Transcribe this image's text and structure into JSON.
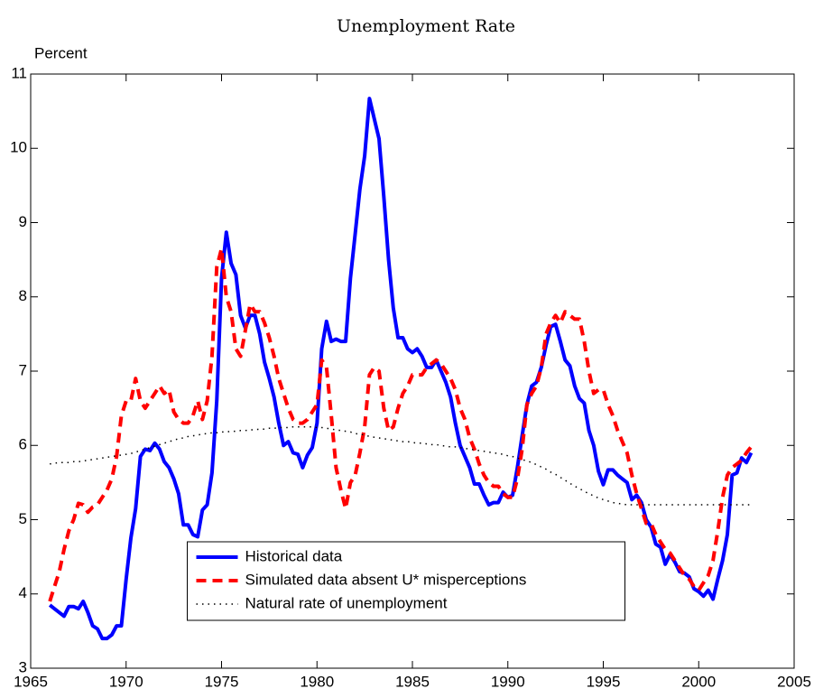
{
  "chart_data": {
    "type": "line",
    "title": "Unemployment Rate",
    "ylabel": "Percent",
    "x": [
      1966,
      1966.25,
      1966.5,
      1966.75,
      1967,
      1967.25,
      1967.5,
      1967.75,
      1968,
      1968.25,
      1968.5,
      1968.75,
      1969,
      1969.25,
      1969.5,
      1969.75,
      1970,
      1970.25,
      1970.5,
      1970.75,
      1971,
      1971.25,
      1971.5,
      1971.75,
      1972,
      1972.25,
      1972.5,
      1972.75,
      1973,
      1973.25,
      1973.5,
      1973.75,
      1974,
      1974.25,
      1974.5,
      1974.75,
      1975,
      1975.25,
      1975.5,
      1975.75,
      1976,
      1976.25,
      1976.5,
      1976.75,
      1977,
      1977.25,
      1977.5,
      1977.75,
      1978,
      1978.25,
      1978.5,
      1978.75,
      1979,
      1979.25,
      1979.5,
      1979.75,
      1980,
      1980.25,
      1980.5,
      1980.75,
      1981,
      1981.25,
      1981.5,
      1981.75,
      1982,
      1982.25,
      1982.5,
      1982.75,
      1983,
      1983.25,
      1983.5,
      1983.75,
      1984,
      1984.25,
      1984.5,
      1984.75,
      1985,
      1985.25,
      1985.5,
      1985.75,
      1986,
      1986.25,
      1986.5,
      1986.75,
      1987,
      1987.25,
      1987.5,
      1987.75,
      1988,
      1988.25,
      1988.5,
      1988.75,
      1989,
      1989.25,
      1989.5,
      1989.75,
      1990,
      1990.25,
      1990.5,
      1990.75,
      1991,
      1991.25,
      1991.5,
      1991.75,
      1992,
      1992.25,
      1992.5,
      1992.75,
      1993,
      1993.25,
      1993.5,
      1993.75,
      1994,
      1994.25,
      1994.5,
      1994.75,
      1995,
      1995.25,
      1995.5,
      1995.75,
      1996,
      1996.25,
      1996.5,
      1996.75,
      1997,
      1997.25,
      1997.5,
      1997.75,
      1998,
      1998.25,
      1998.5,
      1998.75,
      1999,
      1999.25,
      1999.5,
      1999.75,
      2000,
      2000.25,
      2000.5,
      2000.75,
      2001,
      2001.25,
      2001.5,
      2001.75,
      2002,
      2002.25,
      2002.5,
      2002.75
    ],
    "series": [
      {
        "name": "Historical data",
        "color": "#0000ff",
        "style": "solid",
        "values": [
          3.85,
          3.8,
          3.75,
          3.7,
          3.83,
          3.83,
          3.8,
          3.9,
          3.75,
          3.57,
          3.53,
          3.4,
          3.4,
          3.45,
          3.57,
          3.57,
          4.2,
          4.75,
          5.15,
          5.85,
          5.95,
          5.93,
          6.03,
          5.95,
          5.78,
          5.7,
          5.55,
          5.35,
          4.93,
          4.93,
          4.8,
          4.77,
          5.13,
          5.2,
          5.63,
          6.6,
          8.25,
          8.87,
          8.45,
          8.3,
          7.75,
          7.58,
          7.75,
          7.75,
          7.5,
          7.12,
          6.9,
          6.65,
          6.3,
          6.0,
          6.05,
          5.9,
          5.88,
          5.7,
          5.87,
          5.97,
          6.3,
          7.3,
          7.67,
          7.4,
          7.43,
          7.4,
          7.4,
          8.25,
          8.85,
          9.45,
          9.9,
          10.67,
          10.4,
          10.13,
          9.35,
          8.5,
          7.85,
          7.45,
          7.45,
          7.3,
          7.25,
          7.3,
          7.2,
          7.05,
          7.05,
          7.15,
          7.0,
          6.85,
          6.65,
          6.3,
          6.0,
          5.85,
          5.7,
          5.48,
          5.48,
          5.33,
          5.2,
          5.23,
          5.23,
          5.37,
          5.3,
          5.33,
          5.7,
          6.13,
          6.55,
          6.8,
          6.85,
          7.05,
          7.35,
          7.6,
          7.63,
          7.4,
          7.15,
          7.07,
          6.8,
          6.63,
          6.57,
          6.2,
          6.0,
          5.65,
          5.47,
          5.67,
          5.67,
          5.6,
          5.55,
          5.5,
          5.27,
          5.33,
          5.23,
          5.0,
          4.9,
          4.67,
          4.63,
          4.4,
          4.53,
          4.43,
          4.3,
          4.28,
          4.23,
          4.07,
          4.03,
          3.97,
          4.05,
          3.93,
          4.2,
          4.45,
          4.8,
          5.6,
          5.63,
          5.83,
          5.77,
          5.9
        ]
      },
      {
        "name": "Simulated data absent U* misperceptions",
        "color": "#ff0000",
        "style": "dashed",
        "values": [
          3.9,
          4.1,
          4.3,
          4.6,
          4.85,
          5.0,
          5.22,
          5.2,
          5.1,
          5.17,
          5.2,
          5.3,
          5.4,
          5.55,
          5.85,
          6.4,
          6.6,
          6.6,
          6.9,
          6.6,
          6.5,
          6.6,
          6.7,
          6.8,
          6.7,
          6.75,
          6.45,
          6.35,
          6.3,
          6.3,
          6.4,
          6.6,
          6.35,
          6.6,
          7.2,
          8.4,
          8.65,
          8.0,
          7.8,
          7.3,
          7.2,
          7.55,
          7.9,
          7.8,
          7.8,
          7.65,
          7.45,
          7.2,
          6.9,
          6.7,
          6.5,
          6.35,
          6.3,
          6.3,
          6.35,
          6.45,
          6.55,
          7.15,
          7.05,
          6.4,
          5.7,
          5.4,
          5.15,
          5.5,
          5.6,
          5.9,
          6.25,
          6.95,
          7.05,
          7.0,
          6.5,
          6.2,
          6.25,
          6.5,
          6.7,
          6.8,
          6.95,
          6.95,
          6.95,
          7.05,
          7.1,
          7.15,
          7.1,
          7.0,
          6.9,
          6.75,
          6.5,
          6.35,
          6.1,
          5.95,
          5.75,
          5.6,
          5.5,
          5.45,
          5.45,
          5.35,
          5.3,
          5.3,
          5.55,
          5.95,
          6.55,
          6.7,
          6.8,
          7.05,
          7.5,
          7.65,
          7.75,
          7.65,
          7.8,
          7.75,
          7.7,
          7.7,
          7.4,
          7.0,
          6.7,
          6.75,
          6.75,
          6.55,
          6.4,
          6.2,
          6.05,
          5.9,
          5.6,
          5.35,
          5.15,
          4.95,
          4.95,
          4.8,
          4.7,
          4.6,
          4.55,
          4.45,
          4.35,
          4.25,
          4.2,
          4.1,
          4.05,
          4.15,
          4.25,
          4.45,
          4.85,
          5.3,
          5.6,
          5.7,
          5.75,
          5.8,
          5.9,
          5.98
        ]
      },
      {
        "name": "Natural rate of unemployment",
        "color": "#000000",
        "style": "dotted",
        "values": [
          5.75,
          5.76,
          5.77,
          5.77,
          5.77,
          5.78,
          5.78,
          5.79,
          5.8,
          5.81,
          5.82,
          5.83,
          5.84,
          5.85,
          5.86,
          5.87,
          5.88,
          5.89,
          5.91,
          5.93,
          5.95,
          5.97,
          5.99,
          6.01,
          6.03,
          6.05,
          6.07,
          6.09,
          6.1,
          6.12,
          6.13,
          6.14,
          6.15,
          6.16,
          6.17,
          6.17,
          6.18,
          6.18,
          6.19,
          6.19,
          6.2,
          6.2,
          6.21,
          6.21,
          6.22,
          6.22,
          6.23,
          6.23,
          6.24,
          6.24,
          6.24,
          6.25,
          6.25,
          6.25,
          6.25,
          6.25,
          6.24,
          6.24,
          6.23,
          6.22,
          6.21,
          6.2,
          6.19,
          6.18,
          6.16,
          6.15,
          6.14,
          6.12,
          6.11,
          6.1,
          6.09,
          6.08,
          6.07,
          6.06,
          6.05,
          6.05,
          6.04,
          6.03,
          6.03,
          6.02,
          6.01,
          6.01,
          6.0,
          5.99,
          5.98,
          5.98,
          5.97,
          5.96,
          5.95,
          5.94,
          5.93,
          5.92,
          5.91,
          5.9,
          5.89,
          5.88,
          5.86,
          5.85,
          5.83,
          5.81,
          5.79,
          5.77,
          5.74,
          5.71,
          5.68,
          5.64,
          5.61,
          5.57,
          5.53,
          5.49,
          5.45,
          5.42,
          5.38,
          5.35,
          5.32,
          5.29,
          5.27,
          5.25,
          5.23,
          5.22,
          5.21,
          5.2,
          5.2,
          5.2,
          5.2,
          5.2,
          5.2,
          5.2,
          5.2,
          5.2,
          5.2,
          5.2,
          5.2,
          5.2,
          5.2,
          5.2,
          5.2,
          5.2,
          5.2,
          5.2,
          5.2,
          5.2,
          5.2,
          5.2,
          5.2,
          5.2,
          5.2,
          5.2
        ]
      }
    ],
    "xlim": [
      1965,
      2005
    ],
    "xticks": [
      1965,
      1970,
      1975,
      1980,
      1985,
      1990,
      1995,
      2000,
      2005
    ],
    "ylim": [
      3,
      11
    ],
    "yticks": [
      3,
      4,
      5,
      6,
      7,
      8,
      9,
      10,
      11
    ],
    "grid": false,
    "legend": "lower center"
  }
}
